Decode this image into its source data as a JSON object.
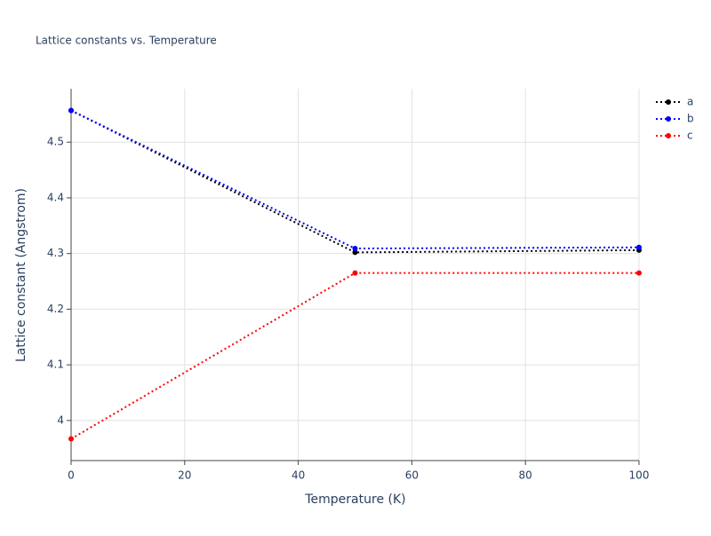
{
  "chart_data": {
    "type": "line",
    "title": "Lattice constants vs. Temperature",
    "x_label": "Temperature (K)",
    "y_label": "Lattice constant (Angstrom)",
    "x": [
      0,
      50,
      100
    ],
    "series": [
      {
        "name": "a",
        "color": "#000000",
        "values": [
          4.557,
          4.302,
          4.306
        ]
      },
      {
        "name": "b",
        "color": "#0000ff",
        "values": [
          4.557,
          4.309,
          4.311
        ]
      },
      {
        "name": "c",
        "color": "#ff0000",
        "values": [
          3.967,
          4.265,
          4.265
        ]
      }
    ],
    "xlim": [
      0,
      100
    ],
    "xticks": [
      0,
      20,
      40,
      60,
      80,
      100
    ],
    "ylim": [
      3.928,
      4.596
    ],
    "yticks": [
      4,
      4.1,
      4.2,
      4.3,
      4.4,
      4.5
    ],
    "grid": true,
    "legend": "top-right"
  }
}
